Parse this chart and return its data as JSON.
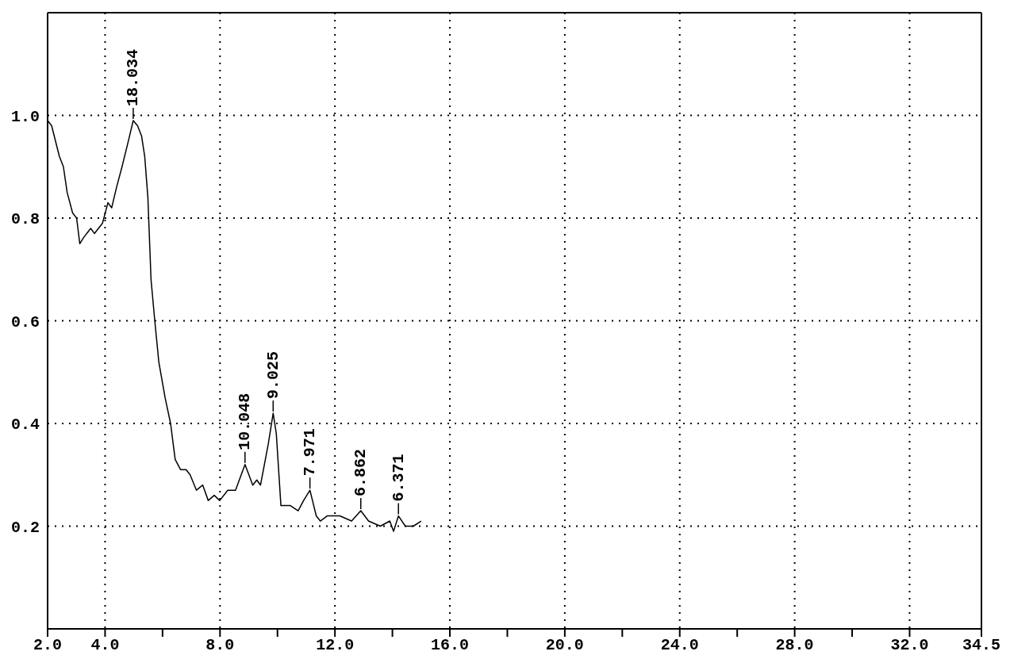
{
  "chart_data": {
    "type": "line",
    "x": [
      2.0,
      2.14,
      2.41,
      2.55,
      2.68,
      2.87,
      3.01,
      3.12,
      3.23,
      3.36,
      3.5,
      3.63,
      3.77,
      3.91,
      4.1,
      4.23,
      4.4,
      4.59,
      4.81,
      4.98,
      5.13,
      5.27,
      5.38,
      5.49,
      5.6,
      5.73,
      5.87,
      6.09,
      6.28,
      6.44,
      6.63,
      6.82,
      6.96,
      7.18,
      7.4,
      7.59,
      7.8,
      7.99,
      8.27,
      8.54,
      8.87,
      9.14,
      9.28,
      9.41,
      9.68,
      9.85,
      9.96,
      10.04,
      10.12,
      10.45,
      10.72,
      10.91,
      11.13,
      11.35,
      11.49,
      11.73,
      12.17,
      12.58,
      12.9,
      13.17,
      13.58,
      13.91,
      14.04,
      14.21,
      14.45,
      14.73,
      15.0
    ],
    "series": [
      {
        "color": "#000000",
        "values": [
          0.99,
          0.98,
          0.92,
          0.9,
          0.85,
          0.81,
          0.8,
          0.75,
          0.76,
          0.77,
          0.78,
          0.77,
          0.78,
          0.79,
          0.83,
          0.82,
          0.86,
          0.9,
          0.95,
          0.99,
          0.98,
          0.96,
          0.92,
          0.84,
          0.68,
          0.6,
          0.52,
          0.45,
          0.4,
          0.33,
          0.31,
          0.31,
          0.3,
          0.27,
          0.28,
          0.25,
          0.26,
          0.25,
          0.27,
          0.27,
          0.32,
          0.28,
          0.29,
          0.28,
          0.36,
          0.42,
          0.38,
          0.31,
          0.24,
          0.24,
          0.23,
          0.25,
          0.27,
          0.22,
          0.21,
          0.22,
          0.22,
          0.21,
          0.23,
          0.21,
          0.2,
          0.21,
          0.19,
          0.22,
          0.2,
          0.2,
          0.21
        ]
      }
    ],
    "xlim": [
      2.0,
      34.5
    ],
    "xticks": [
      {
        "value": 2,
        "label": "2.0"
      },
      {
        "value": 4,
        "label": "4.0"
      },
      {
        "value": 6,
        "label": null
      },
      {
        "value": 8,
        "label": "8.0"
      },
      {
        "value": 10,
        "label": null
      },
      {
        "value": 12,
        "label": "12.0"
      },
      {
        "value": 14,
        "label": null
      },
      {
        "value": 16,
        "label": "16.0"
      },
      {
        "value": 18,
        "label": null
      },
      {
        "value": 20,
        "label": "20.0"
      },
      {
        "value": 22,
        "label": null
      },
      {
        "value": 24,
        "label": "24.0"
      },
      {
        "value": 26,
        "label": null
      },
      {
        "value": 28,
        "label": "28.0"
      },
      {
        "value": 30,
        "label": null
      },
      {
        "value": 32,
        "label": "32.0"
      },
      {
        "value": 34.5,
        "label": "34.5"
      }
    ],
    "ylim": [
      0,
      1.2
    ],
    "yticks": [
      {
        "value": 0.2,
        "label": "0.2"
      },
      {
        "value": 0.4,
        "label": "0.4"
      },
      {
        "value": 0.6,
        "label": "0.6"
      },
      {
        "value": 0.8,
        "label": "0.8"
      },
      {
        "value": 1.0,
        "label": "1.0"
      }
    ],
    "grid": true,
    "line_style": "solid",
    "annotations": [
      {
        "text": "18.034",
        "x": 4.98,
        "y": 0.99
      },
      {
        "text": "10.048",
        "x": 8.87,
        "y": 0.32
      },
      {
        "text": "9.025",
        "x": 9.85,
        "y": 0.42
      },
      {
        "text": "7.971",
        "x": 11.13,
        "y": 0.27
      },
      {
        "text": "6.862",
        "x": 12.9,
        "y": 0.23
      },
      {
        "text": "6.371",
        "x": 14.21,
        "y": 0.22
      }
    ]
  }
}
